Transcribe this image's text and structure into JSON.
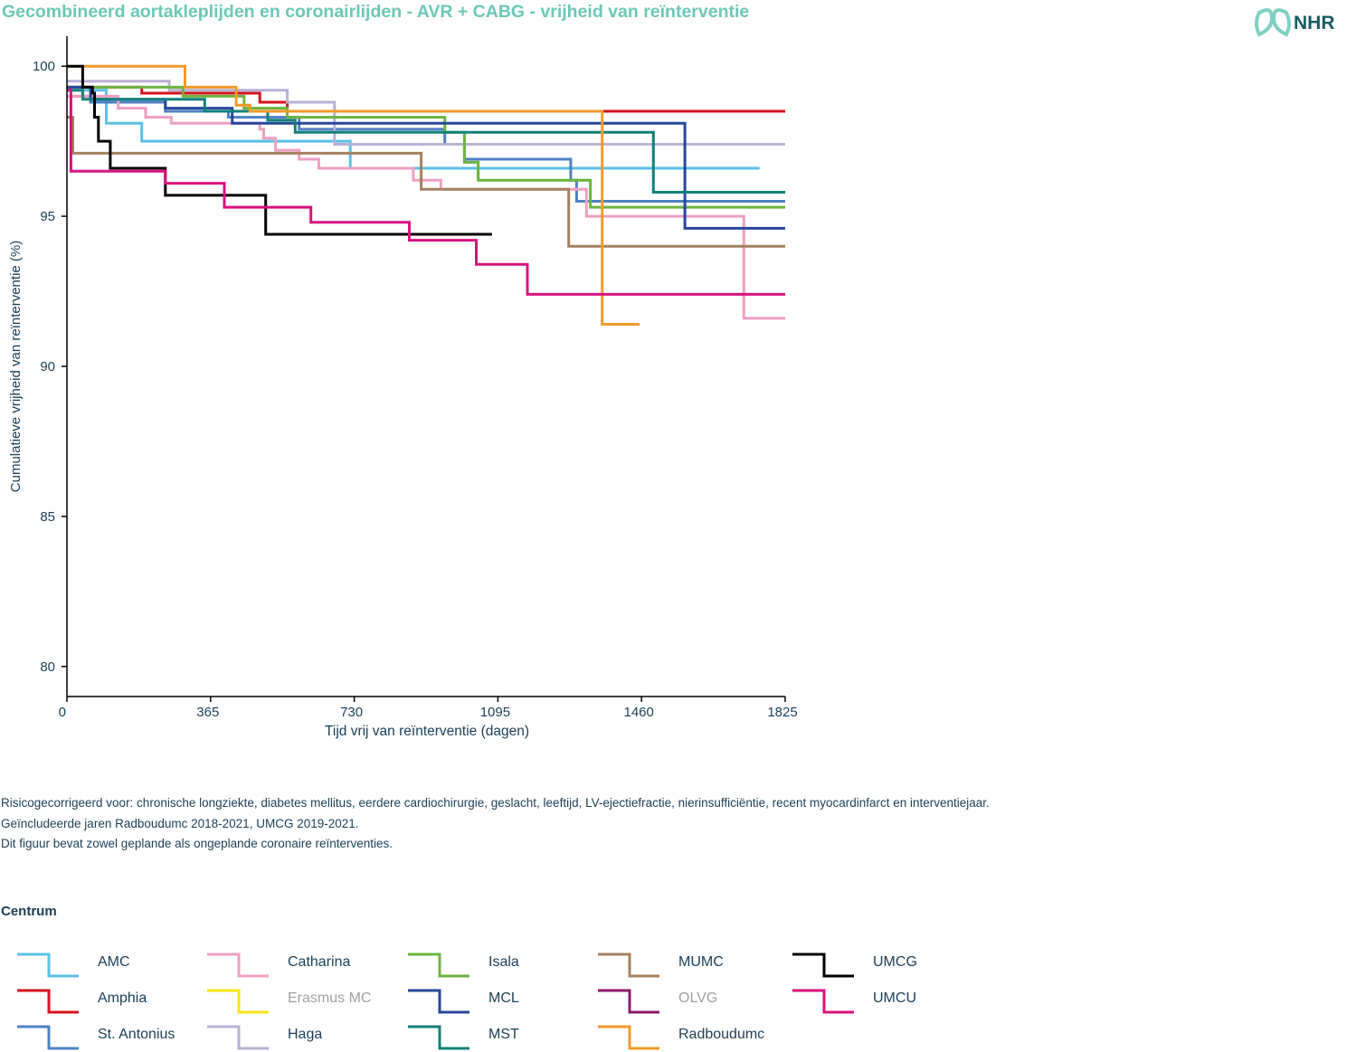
{
  "title": "Gecombineerd aortakleplijden en coronairlijden - AVR + CABG - vrijheid van reïnterventie",
  "logo": {
    "text": "NHR",
    "icon": "nhr-logo-icon"
  },
  "notes": [
    "Risicogecorrigeerd voor: chronische longziekte, diabetes mellitus, eerdere cardiochirurgie, geslacht, leeftijd, LV-ejectiefractie, nierinsufficiëntie, recent myocardinfarct en interventiejaar.",
    "Geïncludeerde jaren Radboudumc 2018-2021, UMCG 2019-2021.",
    "Dit figuur bevat zowel geplande als ongeplande coronaire reïnterventies."
  ],
  "legend": {
    "title": "Centrum",
    "items": [
      {
        "label": "AMC",
        "color": "#5bc0e6",
        "muted": false
      },
      {
        "label": "Amphia",
        "color": "#d5121e",
        "muted": false
      },
      {
        "label": "St. Antonius",
        "color": "#4f82c3",
        "muted": false
      },
      {
        "label": "Catharina",
        "color": "#f09ec3",
        "muted": false
      },
      {
        "label": "Erasmus MC",
        "color": "#fbe51a",
        "muted": true
      },
      {
        "label": "Haga",
        "color": "#b9b1d6",
        "muted": false
      },
      {
        "label": "Isala",
        "color": "#6cb43f",
        "muted": false
      },
      {
        "label": "MCL",
        "color": "#27479a",
        "muted": false
      },
      {
        "label": "MST",
        "color": "#118178",
        "muted": false
      },
      {
        "label": "MUMC",
        "color": "#a68160",
        "muted": false
      },
      {
        "label": "OLVG",
        "color": "#8c1a6a",
        "muted": true
      },
      {
        "label": "Radboudumc",
        "color": "#f19a2b",
        "muted": false
      },
      {
        "label": "UMCG",
        "color": "#000000",
        "muted": false
      },
      {
        "label": "UMCU",
        "color": "#d9127e",
        "muted": false
      }
    ]
  },
  "chart_data": {
    "type": "line",
    "step": true,
    "title": "",
    "xlabel": "Tijd vrij van reïnterventie (dagen)",
    "ylabel": "Cumulatieve vrijheid van reïnterventie  (%)",
    "xlim": [
      0,
      1825
    ],
    "ylim": [
      79,
      101
    ],
    "xticks": [
      0,
      365,
      730,
      1095,
      1460,
      1825
    ],
    "yticks": [
      80,
      85,
      90,
      95,
      100
    ],
    "grid": false,
    "series": [
      {
        "name": "AMC",
        "color": "#5bc0e6",
        "points": [
          [
            0,
            99.2
          ],
          [
            100,
            99.2
          ],
          [
            100,
            98.1
          ],
          [
            190,
            98.1
          ],
          [
            190,
            97.5
          ],
          [
            720,
            97.5
          ],
          [
            720,
            96.6
          ],
          [
            1760,
            96.6
          ]
        ]
      },
      {
        "name": "Amphia",
        "color": "#d5121e",
        "points": [
          [
            0,
            99.3
          ],
          [
            190,
            99.3
          ],
          [
            190,
            99.1
          ],
          [
            490,
            99.1
          ],
          [
            490,
            98.8
          ],
          [
            560,
            98.8
          ],
          [
            560,
            98.5
          ],
          [
            1825,
            98.5
          ]
        ]
      },
      {
        "name": "St. Antonius",
        "color": "#4f82c3",
        "points": [
          [
            0,
            99.0
          ],
          [
            60,
            99.0
          ],
          [
            60,
            98.8
          ],
          [
            250,
            98.8
          ],
          [
            250,
            98.5
          ],
          [
            410,
            98.5
          ],
          [
            410,
            98.3
          ],
          [
            590,
            98.3
          ],
          [
            590,
            97.9
          ],
          [
            960,
            97.9
          ],
          [
            960,
            97.4
          ],
          [
            1010,
            97.4
          ],
          [
            1010,
            96.9
          ],
          [
            1280,
            96.9
          ],
          [
            1280,
            96.2
          ],
          [
            1295,
            96.2
          ],
          [
            1295,
            95.5
          ],
          [
            1825,
            95.5
          ]
        ]
      },
      {
        "name": "Catharina",
        "color": "#f09ec3",
        "points": [
          [
            0,
            99.0
          ],
          [
            130,
            99.0
          ],
          [
            130,
            98.6
          ],
          [
            200,
            98.6
          ],
          [
            200,
            98.3
          ],
          [
            265,
            98.3
          ],
          [
            265,
            98.1
          ],
          [
            490,
            98.1
          ],
          [
            490,
            97.9
          ],
          [
            500,
            97.9
          ],
          [
            500,
            97.6
          ],
          [
            530,
            97.6
          ],
          [
            530,
            97.2
          ],
          [
            590,
            97.2
          ],
          [
            590,
            96.9
          ],
          [
            640,
            96.9
          ],
          [
            640,
            96.6
          ],
          [
            880,
            96.6
          ],
          [
            880,
            96.2
          ],
          [
            950,
            96.2
          ],
          [
            950,
            95.9
          ],
          [
            1320,
            95.9
          ],
          [
            1320,
            95.0
          ],
          [
            1720,
            95.0
          ],
          [
            1720,
            91.6
          ],
          [
            1825,
            91.6
          ]
        ]
      },
      {
        "name": "Haga",
        "color": "#b9b1d6",
        "points": [
          [
            0,
            99.5
          ],
          [
            260,
            99.5
          ],
          [
            260,
            99.2
          ],
          [
            560,
            99.2
          ],
          [
            560,
            98.8
          ],
          [
            680,
            98.8
          ],
          [
            680,
            97.4
          ],
          [
            1825,
            97.4
          ]
        ]
      },
      {
        "name": "Isala",
        "color": "#6cb43f",
        "points": [
          [
            0,
            99.3
          ],
          [
            295,
            99.3
          ],
          [
            295,
            99.0
          ],
          [
            450,
            99.0
          ],
          [
            450,
            98.6
          ],
          [
            560,
            98.6
          ],
          [
            560,
            98.3
          ],
          [
            960,
            98.3
          ],
          [
            960,
            97.8
          ],
          [
            1010,
            97.8
          ],
          [
            1010,
            96.8
          ],
          [
            1045,
            96.8
          ],
          [
            1045,
            96.2
          ],
          [
            1330,
            96.2
          ],
          [
            1330,
            95.3
          ],
          [
            1825,
            95.3
          ]
        ]
      },
      {
        "name": "MCL",
        "color": "#27479a",
        "points": [
          [
            0,
            99.3
          ],
          [
            60,
            99.3
          ],
          [
            60,
            98.9
          ],
          [
            250,
            98.9
          ],
          [
            250,
            98.6
          ],
          [
            420,
            98.6
          ],
          [
            420,
            98.1
          ],
          [
            1570,
            98.1
          ],
          [
            1570,
            94.6
          ],
          [
            1825,
            94.6
          ]
        ]
      },
      {
        "name": "MST",
        "color": "#118178",
        "points": [
          [
            0,
            99.2
          ],
          [
            40,
            99.2
          ],
          [
            40,
            98.9
          ],
          [
            350,
            98.9
          ],
          [
            350,
            98.5
          ],
          [
            510,
            98.5
          ],
          [
            510,
            98.2
          ],
          [
            580,
            98.2
          ],
          [
            580,
            97.8
          ],
          [
            1490,
            97.8
          ],
          [
            1490,
            95.8
          ],
          [
            1825,
            95.8
          ]
        ]
      },
      {
        "name": "MUMC",
        "color": "#a68160",
        "points": [
          [
            0,
            98.3
          ],
          [
            15,
            98.3
          ],
          [
            15,
            97.1
          ],
          [
            900,
            97.1
          ],
          [
            900,
            95.9
          ],
          [
            1275,
            95.9
          ],
          [
            1275,
            94.0
          ],
          [
            1825,
            94.0
          ]
        ]
      },
      {
        "name": "Radboudumc",
        "color": "#f19a2b",
        "points": [
          [
            0,
            100
          ],
          [
            300,
            100
          ],
          [
            300,
            99.3
          ],
          [
            430,
            99.3
          ],
          [
            430,
            98.7
          ],
          [
            465,
            98.7
          ],
          [
            465,
            98.5
          ],
          [
            1360,
            98.5
          ],
          [
            1360,
            91.4
          ],
          [
            1455,
            91.4
          ]
        ]
      },
      {
        "name": "UMCG",
        "color": "#000000",
        "points": [
          [
            0,
            100
          ],
          [
            40,
            100
          ],
          [
            40,
            99.3
          ],
          [
            65,
            99.3
          ],
          [
            65,
            99.1
          ],
          [
            70,
            99.1
          ],
          [
            70,
            98.3
          ],
          [
            80,
            98.3
          ],
          [
            80,
            97.5
          ],
          [
            110,
            97.5
          ],
          [
            110,
            96.6
          ],
          [
            250,
            96.6
          ],
          [
            250,
            95.7
          ],
          [
            505,
            95.7
          ],
          [
            505,
            94.4
          ],
          [
            1080,
            94.4
          ]
        ]
      },
      {
        "name": "UMCU",
        "color": "#d9127e",
        "points": [
          [
            0,
            99.2
          ],
          [
            10,
            99.2
          ],
          [
            10,
            96.5
          ],
          [
            250,
            96.5
          ],
          [
            250,
            96.1
          ],
          [
            400,
            96.1
          ],
          [
            400,
            95.3
          ],
          [
            620,
            95.3
          ],
          [
            620,
            94.8
          ],
          [
            870,
            94.8
          ],
          [
            870,
            94.2
          ],
          [
            1040,
            94.2
          ],
          [
            1040,
            93.4
          ],
          [
            1170,
            93.4
          ],
          [
            1170,
            92.4
          ],
          [
            1825,
            92.4
          ]
        ]
      }
    ]
  }
}
